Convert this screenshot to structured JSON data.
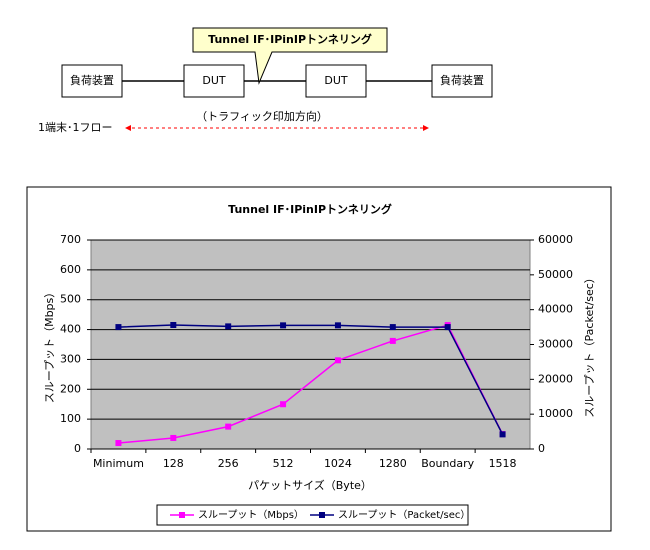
{
  "diagram": {
    "callout": "Tunnel IF･IPinIPトンネリング",
    "nodes": [
      {
        "label": "負荷装置"
      },
      {
        "label": "DUT"
      },
      {
        "label": "DUT"
      },
      {
        "label": "負荷装置"
      }
    ],
    "direction": "（トラフィック印加方向）",
    "flow": "1端末･1フロー"
  },
  "chart_data": {
    "type": "line",
    "title": "Tunnel IF･IPinIPトンネリング",
    "x_label": "パケットサイズ（Byte）",
    "y_label": "スループット（Mbps）",
    "y2_label": "スループット（Packet/sec）",
    "categories": [
      "Minimum",
      "128",
      "256",
      "512",
      "1024",
      "1280",
      "Boundary",
      "1518"
    ],
    "series": [
      {
        "name": "スループット（Mbps）",
        "color": "#ff00ff",
        "values": [
          20,
          37,
          75,
          150,
          297,
          362,
          415,
          50
        ]
      },
      {
        "name": "スループット（Packet/sec）",
        "color": "#000080",
        "axis": "y2",
        "values": [
          35000,
          35600,
          35200,
          35500,
          35500,
          35000,
          35000,
          4200
        ]
      }
    ],
    "ylim": [
      0,
      700
    ],
    "yticks": [
      0,
      100,
      200,
      300,
      400,
      500,
      600,
      700
    ],
    "y2lim": [
      0,
      60000
    ],
    "y2ticks": [
      0,
      10000,
      20000,
      30000,
      40000,
      50000,
      60000
    ],
    "grid": true,
    "legend": "bottom"
  }
}
